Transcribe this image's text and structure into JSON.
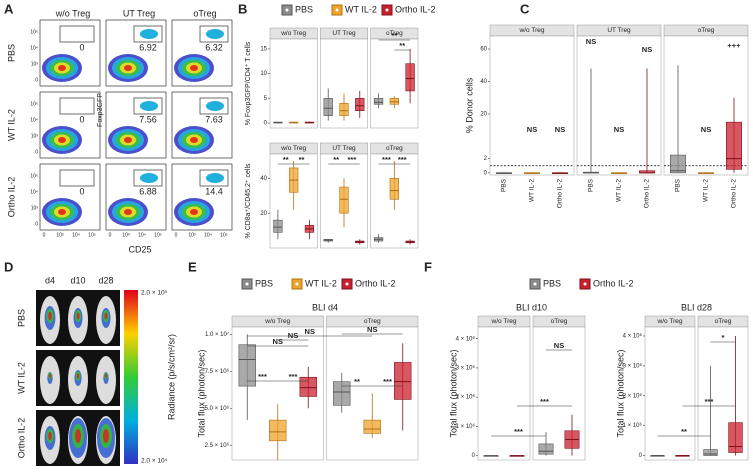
{
  "series_colors": [
    "#8c8c8c",
    "#f0a32a",
    "#c9202f"
  ],
  "panels": {
    "a": {
      "label": "A",
      "columns": [
        "w/o Treg",
        "UT Treg",
        "oTreg"
      ],
      "rows": [
        {
          "name": "PBS",
          "color": "#7f7f7f"
        },
        {
          "name": "WT IL-2",
          "color": "#f0a32a"
        },
        {
          "name": "Ortho IL-2",
          "color": "#c9202f"
        }
      ],
      "gates": [
        [
          0,
          6.92,
          6.32
        ],
        [
          0,
          7.56,
          7.63
        ],
        [
          0,
          6.88,
          14.4
        ]
      ],
      "axis_ticks": [
        "0",
        "10³",
        "10⁴",
        "10⁵"
      ],
      "ylabel": "Foxp3GFP",
      "xlabel": "CD25"
    },
    "b": {
      "label": "B",
      "legend": [
        {
          "name": "PBS",
          "color": "#8c8c8c"
        },
        {
          "name": "WT IL-2",
          "color": "#f0a32a"
        },
        {
          "name": "Ortho IL-2",
          "color": "#c9202f"
        }
      ],
      "plots": [
        {
          "ylabel": "% Foxp3GFP/CD4⁺ T cells",
          "ylim": [
            -1,
            17
          ],
          "yticks": [
            0,
            5,
            10,
            15
          ],
          "facets": [
            {
              "title": "w/o Treg",
              "boxes": [
                [
                  0,
                  0,
                  0.1,
                  0.2,
                  0.3
                ],
                [
                  0,
                  0,
                  0.1,
                  0.2,
                  0.3
                ],
                [
                  0,
                  0,
                  0.1,
                  0.2,
                  0.3
                ]
              ]
            },
            {
              "title": "UT Treg",
              "boxes": [
                [
                  0.5,
                  1.5,
                  3,
                  5,
                  7
                ],
                [
                  0.5,
                  1.5,
                  2.5,
                  4,
                  6
                ],
                [
                  1,
                  2.5,
                  3.5,
                  5,
                  6.5
                ]
              ]
            },
            {
              "title": "oTreg",
              "boxes": [
                [
                  3,
                  3.8,
                  4.2,
                  5,
                  6
                ],
                [
                  3,
                  3.8,
                  4.3,
                  5,
                  5.5
                ],
                [
                  4,
                  6.5,
                  9,
                  12,
                  15
                ]
              ]
            }
          ],
          "annotations": [
            "**",
            "**"
          ]
        },
        {
          "ylabel": "% CD8a⁺/CD45.2⁺ cells",
          "ylim": [
            0,
            54
          ],
          "yticks": [
            20,
            40
          ],
          "facets": [
            {
              "title": "w/o Treg",
              "boxes": [
                [
                  5,
                  9,
                  12,
                  16,
                  22
                ],
                [
                  22,
                  32,
                  39,
                  46,
                  50
                ],
                [
                  5,
                  9,
                  11,
                  13,
                  16
                ]
              ]
            },
            {
              "title": "UT Treg",
              "boxes": [
                [
                  3,
                  4,
                  4.5,
                  5,
                  5
                ],
                [
                  12,
                  20,
                  28,
                  35,
                  40
                ],
                [
                  2,
                  3,
                  3.5,
                  4,
                  5
                ]
              ]
            },
            {
              "title": "oTreg",
              "boxes": [
                [
                  3,
                  4,
                  5,
                  6,
                  8
                ],
                [
                  22,
                  28,
                  33,
                  40,
                  50
                ],
                [
                  2,
                  3,
                  3.5,
                  4,
                  5
                ]
              ]
            }
          ],
          "annotations": [
            "**",
            "**",
            "**",
            "***",
            "***",
            "***"
          ]
        }
      ]
    },
    "c": {
      "label": "C",
      "ylabel": "% Donor cells",
      "ylim_low": [
        -0.3,
        4
      ],
      "yticks_low": [
        0,
        2
      ],
      "ylim_high": [
        5,
        68
      ],
      "yticks_high": [
        20,
        40,
        60
      ],
      "categories": [
        "PBS",
        "WT IL-2",
        "Ortho IL-2"
      ],
      "reference_line": 1,
      "facets": [
        {
          "title": "w/o Treg",
          "boxes": [
            [
              0,
              0,
              0,
              0,
              0.1
            ],
            [
              0,
              0,
              0,
              0,
              0.1
            ],
            [
              0,
              0,
              0,
              0,
              0.1
            ]
          ]
        },
        {
          "title": "UT Treg",
          "boxes": [
            [
              0,
              0,
              0,
              0.1,
              48
            ],
            [
              0,
              0,
              0,
              0,
              0.1
            ],
            [
              0,
              0,
              0,
              0.3,
              48
            ]
          ]
        },
        {
          "title": "oTreg",
          "boxes": [
            [
              0,
              0,
              0.3,
              2.5,
              50
            ],
            [
              0,
              0,
              0,
              0,
              0.1
            ],
            [
              0,
              0.5,
              2,
              15,
              30
            ]
          ]
        }
      ],
      "annotations": [
        "NS",
        "NS",
        "NS",
        "NS",
        "NS",
        "NS",
        "+++"
      ]
    },
    "d": {
      "label": "D",
      "days": [
        "d4",
        "d10",
        "d28"
      ],
      "rows": [
        {
          "name": "PBS",
          "color": "#7f7f7f"
        },
        {
          "name": "WT IL-2",
          "color": "#f0a32a"
        },
        {
          "name": "Ortho IL-2",
          "color": "#c9202f"
        }
      ],
      "colorbar_label": "Radiance (p/s/cm²/sr)",
      "colorbar_max": "2.0 × 10⁵",
      "colorbar_min": "2.0 × 10⁴"
    },
    "e": {
      "label": "E",
      "legend": [
        {
          "name": "PBS",
          "color": "#8c8c8c"
        },
        {
          "name": "WT IL-2",
          "color": "#f0a32a"
        },
        {
          "name": "Ortho IL-2",
          "color": "#c9202f"
        }
      ],
      "plots": [
        {
          "title": "BLI d4",
          "ylabel": "Total flux (photon/sec)",
          "ylim": [
            1500000,
            10500000
          ],
          "yticks": [
            {
              "value": 2500000,
              "label": "2.5 × 10⁶"
            },
            {
              "value": 5000000,
              "label": "5.0 × 10⁶"
            },
            {
              "value": 7500000,
              "label": "7.5 × 10⁶"
            },
            {
              "value": 10000000,
              "label": "1.0 × 10⁷"
            }
          ],
          "facets": [
            {
              "title": "w/o Treg",
              "boxes": [
                [
                  4200000,
                  6500000,
                  8300000,
                  9300000,
                  10000000
                ],
                [
                  1500000,
                  2800000,
                  3400000,
                  4200000,
                  5300000
                ],
                [
                  5000000,
                  5800000,
                  6400000,
                  7100000,
                  7800000
                ]
              ]
            },
            {
              "title": "oTreg",
              "boxes": [
                [
                  4700000,
                  5200000,
                  6100000,
                  6800000,
                  7400000
                ],
                [
                  3000000,
                  3300000,
                  3600000,
                  4200000,
                  6000000
                ],
                [
                  3500000,
                  5600000,
                  6800000,
                  8100000,
                  9400000
                ]
              ]
            }
          ],
          "annotations": [
            "NS",
            "NS",
            "NS",
            "NS",
            "***",
            "***",
            "**",
            "***"
          ]
        }
      ]
    },
    "f": {
      "label": "F",
      "legend": [
        {
          "name": "PBS",
          "color": "#8c8c8c"
        },
        {
          "name": "Ortho IL-2",
          "color": "#c9202f"
        }
      ],
      "plots": [
        {
          "title": "BLI d10",
          "ylabel": "Total flux (photon/sec)",
          "ylim": [
            -150000,
            4400000
          ],
          "yticks": [
            0,
            {
              "value": 1000000,
              "label": "1 × 10⁶"
            },
            {
              "value": 2000000,
              "label": "2 × 10⁶"
            },
            {
              "value": 3000000,
              "label": "3 × 10⁶"
            },
            {
              "value": 4000000,
              "label": "4 × 10⁶"
            }
          ],
          "facets": [
            {
              "title": "w/o Treg",
              "boxes": [
                [
                  0,
                  0,
                  0,
                  0,
                  20000
                ],
                [
                  0,
                  0,
                  0,
                  0,
                  20000
                ]
              ]
            },
            {
              "title": "oTreg",
              "boxes": [
                [
                  0,
                  50000,
                  150000,
                  400000,
                  800000
                ],
                [
                  0,
                  250000,
                  550000,
                  850000,
                  1400000
                ]
              ]
            }
          ],
          "annotations": [
            "NS",
            "***",
            "***"
          ]
        },
        {
          "title": "BLI d28",
          "ylabel": "Total flux (photon/sec)",
          "ylim": [
            -150000,
            4300000
          ],
          "yticks": [
            0,
            {
              "value": 1000000,
              "label": "1 × 10⁶"
            },
            {
              "value": 2000000,
              "label": "2 × 10⁶"
            },
            {
              "value": 3000000,
              "label": "3 × 10⁶"
            },
            {
              "value": 4000000,
              "label": "4 × 10⁶"
            }
          ],
          "facets": [
            {
              "title": "w/o Treg",
              "boxes": [
                [
                  0,
                  0,
                  0,
                  0,
                  20000
                ],
                [
                  0,
                  0,
                  0,
                  0,
                  20000
                ]
              ]
            },
            {
              "title": "oTreg",
              "boxes": [
                [
                  0,
                  0,
                  50000,
                  200000,
                  3000000
                ],
                [
                  0,
                  100000,
                  300000,
                  1100000,
                  4000000
                ]
              ]
            }
          ],
          "annotations": [
            "*",
            "***",
            "**"
          ]
        }
      ]
    }
  }
}
